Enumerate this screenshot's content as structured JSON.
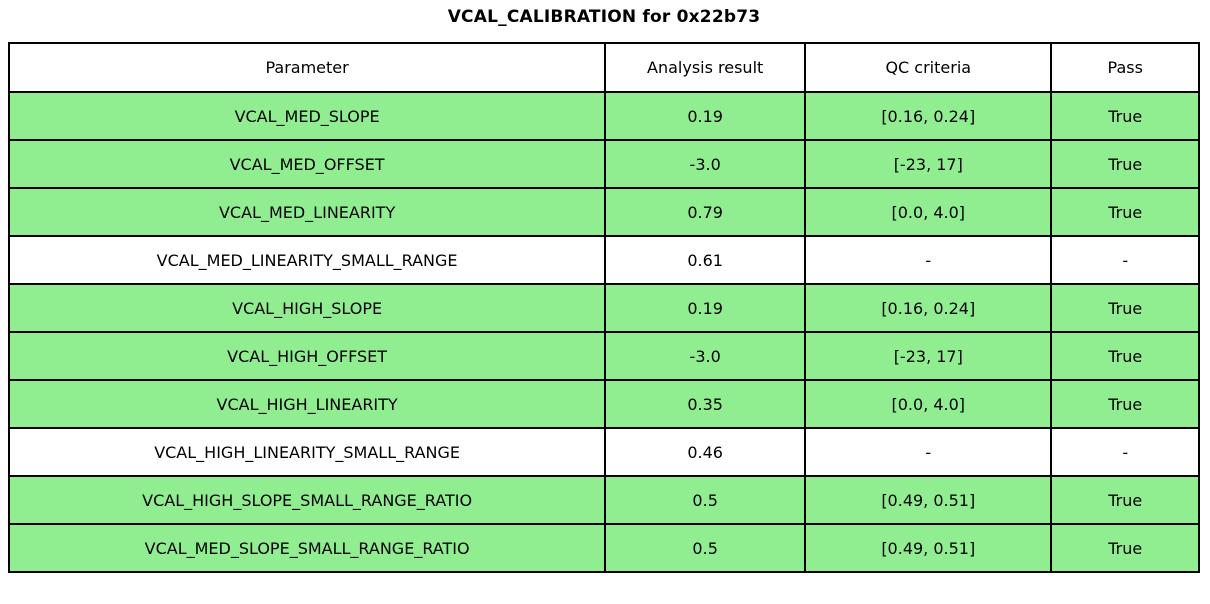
{
  "title": "VCAL_CALIBRATION for 0x22b73",
  "chart_data": {
    "type": "table",
    "title": "VCAL_CALIBRATION for 0x22b73",
    "columns": [
      "Parameter",
      "Analysis result",
      "QC criteria",
      "Pass"
    ],
    "rows": [
      {
        "cells": [
          "VCAL_MED_SLOPE",
          "0.19",
          "[0.16, 0.24]",
          "True"
        ],
        "highlight": true
      },
      {
        "cells": [
          "VCAL_MED_OFFSET",
          "-3.0",
          "[-23, 17]",
          "True"
        ],
        "highlight": true
      },
      {
        "cells": [
          "VCAL_MED_LINEARITY",
          "0.79",
          "[0.0, 4.0]",
          "True"
        ],
        "highlight": true
      },
      {
        "cells": [
          "VCAL_MED_LINEARITY_SMALL_RANGE",
          "0.61",
          "-",
          "-"
        ],
        "highlight": false
      },
      {
        "cells": [
          "VCAL_HIGH_SLOPE",
          "0.19",
          "[0.16, 0.24]",
          "True"
        ],
        "highlight": true
      },
      {
        "cells": [
          "VCAL_HIGH_OFFSET",
          "-3.0",
          "[-23, 17]",
          "True"
        ],
        "highlight": true
      },
      {
        "cells": [
          "VCAL_HIGH_LINEARITY",
          "0.35",
          "[0.0, 4.0]",
          "True"
        ],
        "highlight": true
      },
      {
        "cells": [
          "VCAL_HIGH_LINEARITY_SMALL_RANGE",
          "0.46",
          "-",
          "-"
        ],
        "highlight": false
      },
      {
        "cells": [
          "VCAL_HIGH_SLOPE_SMALL_RANGE_RATIO",
          "0.5",
          "[0.49, 0.51]",
          "True"
        ],
        "highlight": true
      },
      {
        "cells": [
          "VCAL_MED_SLOPE_SMALL_RANGE_RATIO",
          "0.5",
          "[0.49, 0.51]",
          "True"
        ],
        "highlight": true
      }
    ],
    "layout_hints": {
      "grid": "on",
      "cell_text_align": "center",
      "header_row": true
    }
  },
  "colors": {
    "row_pass_background": "#90EE90",
    "row_neutral_background": "#FFFFFF",
    "border": "#000000",
    "text": "#000000"
  }
}
